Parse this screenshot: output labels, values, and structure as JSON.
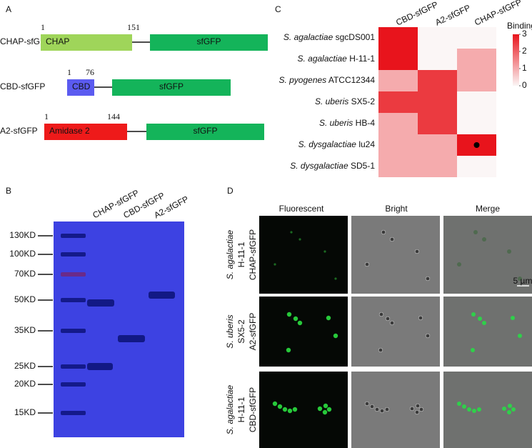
{
  "panel_labels": [
    "A",
    "B",
    "C",
    "D"
  ],
  "constructs": [
    {
      "name": "CHAP-sfGFP",
      "start": 1,
      "end": 151,
      "domain": "CHAP",
      "tag": "sfGFP"
    },
    {
      "name": "CBD-sfGFP",
      "start": 1,
      "end": 76,
      "domain": "CBD",
      "tag": "sfGFP"
    },
    {
      "name": "A2-sfGFP",
      "start": 1,
      "end": 144,
      "domain": "Amidase 2",
      "tag": "sfGFP"
    }
  ],
  "gel": {
    "lanes": [
      "CHAP-sfGFP",
      "CBD-sfGFP",
      "A2-sfGFP"
    ],
    "markers": [
      "130KD",
      "100KD",
      "70KD",
      "50KD",
      "35KD",
      "25KD",
      "20KD",
      "15KD"
    ]
  },
  "heatmap": {
    "columns": [
      "CBD-sfGFP",
      "A2-sfGFP",
      "CHAP-sfGFP"
    ],
    "rows": [
      {
        "species": "S. agalactiae",
        "strain": "sgcDS001"
      },
      {
        "species": "S. agalactiae",
        "strain": "H-11-1"
      },
      {
        "species": "S. pyogenes",
        "strain": "ATCC12344"
      },
      {
        "species": "S. uberis",
        "strain": "SX5-2"
      },
      {
        "species": "S. uberis",
        "strain": "HB-4"
      },
      {
        "species": "S. dysgalactiae",
        "strain": "lu24"
      },
      {
        "species": "S. dysgalactiae",
        "strain": "SD5-1"
      }
    ],
    "values": [
      [
        3,
        0,
        0
      ],
      [
        3,
        0,
        1
      ],
      [
        1,
        2.5,
        1
      ],
      [
        2.5,
        2.5,
        0
      ],
      [
        1,
        2.5,
        0
      ],
      [
        1,
        1,
        3
      ],
      [
        1,
        1,
        0
      ]
    ],
    "legend_title": "Binding",
    "range": [
      0,
      3
    ],
    "colorbar_ticks": [
      3,
      2,
      1,
      0
    ]
  },
  "micrographs": {
    "columns": [
      "Fluorescent",
      "Bright",
      "Merge"
    ],
    "rows": [
      {
        "species": "S. agalactiae",
        "strain": "H-11-1",
        "construct": "CHAP-sfGFP"
      },
      {
        "species": "S. uberis",
        "strain": "SX5-2",
        "construct": "A2-sfGFP"
      },
      {
        "species": "S. agalactiae",
        "strain": "H-11-1",
        "construct": "CBD-sfGFP"
      }
    ],
    "scale_bar": "5 µm"
  }
}
